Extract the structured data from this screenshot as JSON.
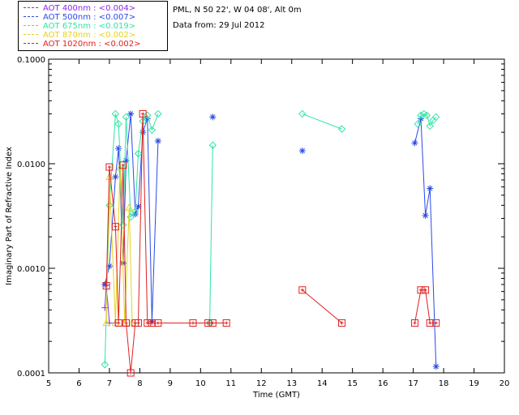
{
  "info": {
    "line1": "PML, N 50 22', W 04 08', Alt 0m",
    "line2": "Data from: 29 Jul 2012"
  },
  "legend": [
    {
      "label": "AOT  400nm : <0.004>",
      "color": "#8a2be2"
    },
    {
      "label": "AOT  500nm : <0.007>",
      "color": "#2a4ae6"
    },
    {
      "label": "AOT  675nm : <0.019>",
      "color": "#2ee6a4"
    },
    {
      "label": "AOT  870nm : <0.002>",
      "color": "#e6d21e"
    },
    {
      "label": "AOT 1020nm : <0.002>",
      "color": "#e02020"
    }
  ],
  "chart_data": {
    "type": "line",
    "title": "",
    "xlabel": "Time (GMT)",
    "ylabel": "Imaginary Part of Refractive Index",
    "xlim": [
      5,
      20
    ],
    "ylim": [
      0.0001,
      0.1
    ],
    "yscale": "log",
    "xticks": [
      "5",
      "6",
      "7",
      "8",
      "9",
      "10",
      "11",
      "12",
      "13",
      "14",
      "15",
      "16",
      "17",
      "18",
      "19",
      "20"
    ],
    "yticks": [
      {
        "value": 0.0001,
        "label": "0.0001"
      },
      {
        "value": 0.001,
        "label": "0.0010"
      },
      {
        "value": 0.01,
        "label": "0.0100"
      },
      {
        "value": 0.1,
        "label": "0.1000"
      }
    ],
    "series": [
      {
        "name": "AOT  400nm",
        "color": "#8a2be2",
        "marker": "plus",
        "x": [
          6.85,
          6.9,
          7.0,
          7.2
        ],
        "y": [
          0.00042,
          0.00069,
          0.0003,
          0.0003
        ]
      },
      {
        "name": "AOT  500nm",
        "color": "#2a4ae6",
        "marker": "star",
        "x": [
          6.85,
          7.0,
          7.2,
          7.3,
          7.45,
          7.55,
          7.7,
          7.85,
          7.95,
          8.1,
          8.25,
          8.4,
          8.6,
          10.4,
          13.35,
          17.05,
          17.25,
          17.4,
          17.55,
          17.75
        ],
        "y": [
          0.0007,
          0.00105,
          0.0075,
          0.014,
          0.00112,
          0.0107,
          0.03,
          0.0033,
          0.0039,
          0.02,
          0.027,
          0.00031,
          0.0165,
          0.028,
          0.0133,
          0.0158,
          0.027,
          0.0032,
          0.0058,
          0.000115
        ]
      },
      {
        "name": "AOT  675nm",
        "color": "#2ee6a4",
        "marker": "diamond",
        "x": [
          6.85,
          7.0,
          7.2,
          7.3,
          7.45,
          7.55,
          7.7,
          7.85,
          7.95,
          8.1,
          8.25,
          8.4,
          8.6,
          10.3,
          10.4,
          13.35,
          14.65,
          17.15,
          17.25,
          17.35,
          17.45,
          17.55,
          17.65,
          17.75
        ],
        "y": [
          0.00012,
          0.004,
          0.03,
          0.024,
          0.0026,
          0.028,
          0.0031,
          0.0035,
          0.0125,
          0.0255,
          0.029,
          0.021,
          0.03,
          0.0003,
          0.015,
          0.03,
          0.0215,
          0.024,
          0.029,
          0.03,
          0.029,
          0.023,
          0.026,
          0.028
        ]
      },
      {
        "name": "AOT  870nm",
        "color": "#e6d21e",
        "marker": "triangle",
        "x": [
          6.9,
          7.0,
          7.2,
          7.35,
          7.5,
          7.65,
          7.75
        ],
        "y": [
          0.0003,
          0.0075,
          0.0003,
          0.0092,
          0.0003,
          0.0038,
          0.0003
        ]
      },
      {
        "name": "AOT 1020nm",
        "color": "#e02020",
        "marker": "square",
        "x": [
          6.9,
          7.0,
          7.2,
          7.3,
          7.45,
          7.55,
          7.7,
          7.85,
          7.95,
          8.1,
          8.25,
          8.4,
          8.6,
          9.75,
          10.25,
          10.4,
          10.85,
          13.35,
          14.65,
          17.05,
          17.25,
          17.4,
          17.55,
          17.75
        ],
        "y": [
          0.00068,
          0.0093,
          0.0025,
          0.0003,
          0.0097,
          0.0003,
          0.0001,
          0.0003,
          0.0003,
          0.03,
          0.0003,
          0.0003,
          0.0003,
          0.0003,
          0.0003,
          0.0003,
          0.0003,
          0.00062,
          0.0003,
          0.0003,
          0.00062,
          0.00062,
          0.0003,
          0.0003
        ]
      }
    ],
    "isolated_points": [
      {
        "series": "AOT 1020nm",
        "x": 9.75,
        "y": 0.0003
      },
      {
        "series": "AOT 1020nm",
        "x": 10.85,
        "y": 0.0003
      },
      {
        "series": "AOT 1020nm",
        "x": 13.35,
        "y": 0.00062
      },
      {
        "series": "AOT 1020nm",
        "x": 14.65,
        "y": 0.0003
      },
      {
        "series": "AOT  675nm",
        "x": 13.35,
        "y": 0.03
      },
      {
        "series": "AOT  675nm",
        "x": 14.65,
        "y": 0.0215
      },
      {
        "series": "AOT  500nm",
        "x": 13.35,
        "y": 0.0133
      }
    ],
    "grid": false,
    "legend_position": "top-left"
  }
}
